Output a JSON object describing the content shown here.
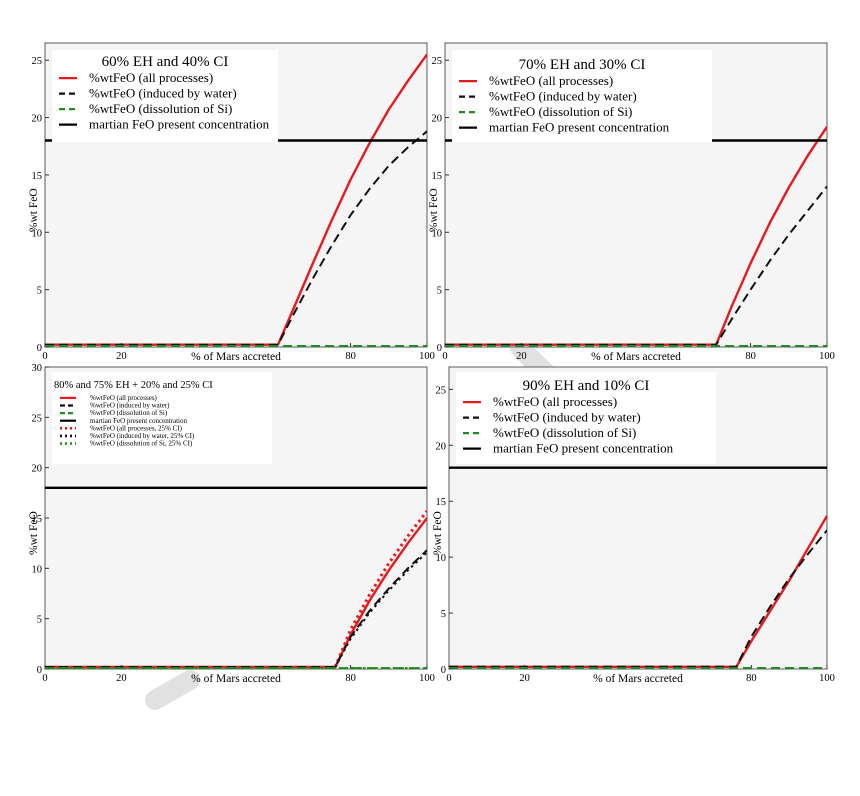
{
  "figure": {
    "panels": [
      {
        "id": "p1",
        "title": "60% EH and 40% CI",
        "ylabel": "%wt FeO",
        "xlabel": "% of Mars accreted",
        "xlim": [
          0,
          100
        ],
        "ylim": [
          0,
          26.5
        ],
        "yticks": [
          0,
          5,
          10,
          15,
          20,
          25
        ],
        "xticks": [
          0,
          20,
          80,
          100
        ],
        "legend_small": false,
        "legend": [
          {
            "label": "%wtFeO (all processes)",
            "color": "#e8191c",
            "style": "solid"
          },
          {
            "label": "%wtFeO (induced by water)",
            "color": "#111111",
            "style": "dash"
          },
          {
            "label": "%wtFeO (dissolution of Si)",
            "color": "#1e8c1e",
            "style": "dash"
          },
          {
            "label": "martian FeO present concentration",
            "color": "#000000",
            "style": "solid"
          }
        ],
        "series": [
          {
            "name": "%wtFeO (all processes)",
            "color": "#e8191c",
            "style": "solid",
            "width": 2.4,
            "x": [
              0,
              61,
              65,
              70,
              75,
              80,
              85,
              90,
              95,
              100
            ],
            "y": [
              0.2,
              0.2,
              3.3,
              7.2,
              11.0,
              14.6,
              17.8,
              20.7,
              23.2,
              25.5
            ]
          },
          {
            "name": "%wtFeO (induced by water)",
            "color": "#111111",
            "style": "dash",
            "width": 2.0,
            "x": [
              0,
              61,
              65,
              70,
              75,
              80,
              85,
              90,
              95,
              100
            ],
            "y": [
              0.2,
              0.2,
              2.8,
              5.9,
              8.8,
              11.5,
              13.8,
              15.8,
              17.4,
              18.8
            ]
          },
          {
            "name": "%wtFeO (dissolution of Si)",
            "color": "#1e8c1e",
            "style": "dash",
            "width": 1.8,
            "x": [
              0,
              100
            ],
            "y": [
              0.1,
              0.1
            ]
          },
          {
            "name": "martian FeO present concentration",
            "color": "#000000",
            "style": "solid",
            "width": 2.4,
            "x": [
              0,
              100
            ],
            "y": [
              18.0,
              18.0
            ]
          }
        ]
      },
      {
        "id": "p2",
        "title": "70% EH and 30% CI",
        "ylabel": "%wt FeO",
        "xlabel": "% of Mars accreted",
        "xlim": [
          0,
          100
        ],
        "ylim": [
          0,
          26.5
        ],
        "yticks": [
          0,
          5,
          10,
          15,
          20,
          25
        ],
        "xticks": [
          0,
          20,
          80,
          100
        ],
        "legend_small": false,
        "legend": [
          {
            "label": "%wtFeO (all processes)",
            "color": "#e8191c",
            "style": "solid"
          },
          {
            "label": "%wtFeO (induced by water)",
            "color": "#111111",
            "style": "dash"
          },
          {
            "label": "%wtFeO (dissolution of Si)",
            "color": "#1e8c1e",
            "style": "dash"
          },
          {
            "label": "martian FeO present concentration",
            "color": "#000000",
            "style": "solid"
          }
        ],
        "series": [
          {
            "name": "%wtFeO (all processes)",
            "color": "#e8191c",
            "style": "solid",
            "width": 2.4,
            "x": [
              0,
              71,
              75,
              80,
              85,
              90,
              95,
              100
            ],
            "y": [
              0.2,
              0.2,
              3.5,
              7.3,
              10.8,
              13.9,
              16.7,
              19.2
            ]
          },
          {
            "name": "%wtFeO (induced by water)",
            "color": "#111111",
            "style": "dash",
            "width": 2.0,
            "x": [
              0,
              71,
              75,
              80,
              85,
              90,
              95,
              100
            ],
            "y": [
              0.2,
              0.2,
              2.4,
              5.0,
              7.5,
              9.8,
              11.9,
              14.0
            ]
          },
          {
            "name": "%wtFeO (dissolution of Si)",
            "color": "#1e8c1e",
            "style": "dash",
            "width": 1.8,
            "x": [
              0,
              100
            ],
            "y": [
              0.1,
              0.1
            ]
          },
          {
            "name": "martian FeO present concentration",
            "color": "#000000",
            "style": "solid",
            "width": 2.4,
            "x": [
              0,
              100
            ],
            "y": [
              18.0,
              18.0
            ]
          }
        ]
      },
      {
        "id": "p3",
        "title": "80% and 75% EH + 20% and 25% CI",
        "ylabel": "%wt FeO",
        "xlabel": "% of Mars accreted",
        "xlim": [
          0,
          100
        ],
        "ylim": [
          0,
          30
        ],
        "yticks": [
          0,
          5,
          10,
          15,
          20,
          25,
          30
        ],
        "xticks": [
          0,
          20,
          80,
          100
        ],
        "legend_small": true,
        "legend": [
          {
            "label": "%wtFeO (all processes)",
            "color": "#e8191c",
            "style": "solid"
          },
          {
            "label": "%wtFeO (induced by water)",
            "color": "#111111",
            "style": "dash"
          },
          {
            "label": "%wtFeO (dissolution of Si)",
            "color": "#1e8c1e",
            "style": "dash"
          },
          {
            "label": "martian FeO present concentration",
            "color": "#000000",
            "style": "solid"
          },
          {
            "label": "%wtFeO (all processes, 25% CI)",
            "color": "#e8191c",
            "style": "dot"
          },
          {
            "label": "%wtFeO (induced by water, 25% CI)",
            "color": "#111111",
            "style": "dot"
          },
          {
            "label": "%wtFeO (dissolution of Si, 25% CI)",
            "color": "#1e8c1e",
            "style": "dot"
          }
        ],
        "series": [
          {
            "name": "%wtFeO (all processes)",
            "color": "#e8191c",
            "style": "solid",
            "width": 2.4,
            "x": [
              0,
              76,
              80,
              85,
              90,
              95,
              100
            ],
            "y": [
              0.2,
              0.2,
              3.4,
              6.8,
              9.8,
              12.5,
              15.0
            ]
          },
          {
            "name": "%wtFeO (induced by water)",
            "color": "#111111",
            "style": "dash",
            "width": 2.0,
            "x": [
              0,
              76,
              80,
              85,
              90,
              95,
              100
            ],
            "y": [
              0.2,
              0.2,
              3.2,
              5.8,
              8.0,
              10.0,
              11.8
            ]
          },
          {
            "name": "%wtFeO (dissolution of Si)",
            "color": "#1e8c1e",
            "style": "dash",
            "width": 1.8,
            "x": [
              0,
              100
            ],
            "y": [
              0.1,
              0.1
            ]
          },
          {
            "name": "martian FeO present concentration",
            "color": "#000000",
            "style": "solid",
            "width": 2.4,
            "x": [
              0,
              100
            ],
            "y": [
              18.0,
              18.0
            ]
          },
          {
            "name": "%wtFeO (all processes, 25% CI)",
            "color": "#e8191c",
            "style": "dot",
            "width": 3.0,
            "x": [
              76,
              80,
              85,
              90,
              95,
              100
            ],
            "y": [
              0.2,
              3.9,
              7.4,
              10.5,
              13.2,
              15.7
            ]
          },
          {
            "name": "%wtFeO (induced by water, 25% CI)",
            "color": "#111111",
            "style": "dot",
            "width": 2.0,
            "x": [
              76,
              80,
              85,
              90,
              95,
              100
            ],
            "y": [
              0.2,
              3.0,
              5.6,
              7.8,
              9.8,
              11.6
            ]
          },
          {
            "name": "%wtFeO (dissolution of Si, 25% CI)",
            "color": "#1e8c1e",
            "style": "dot",
            "width": 2.0,
            "x": [
              0,
              100
            ],
            "y": [
              0.1,
              0.1
            ]
          }
        ]
      },
      {
        "id": "p4",
        "title": "90% EH and 10% CI",
        "ylabel": "%wt FeO",
        "xlabel": "% of Mars accreted",
        "xlim": [
          0,
          100
        ],
        "ylim": [
          0,
          27
        ],
        "yticks": [
          0,
          5,
          10,
          15,
          20,
          25
        ],
        "xticks": [
          0,
          20,
          80,
          100
        ],
        "legend_small": false,
        "legend": [
          {
            "label": "%wtFeO (all processes)",
            "color": "#e8191c",
            "style": "solid"
          },
          {
            "label": "%wtFeO (induced by water)",
            "color": "#111111",
            "style": "dash"
          },
          {
            "label": "%wtFeO (dissolution of Si)",
            "color": "#1e8c1e",
            "style": "dash"
          },
          {
            "label": "martian FeO present concentration",
            "color": "#000000",
            "style": "solid"
          }
        ],
        "series": [
          {
            "name": "%wtFeO (all processes)",
            "color": "#e8191c",
            "style": "solid",
            "width": 2.4,
            "x": [
              0,
              76,
              80,
              85,
              90,
              95,
              100
            ],
            "y": [
              0.2,
              0.2,
              2.5,
              5.2,
              7.9,
              10.8,
              13.7
            ]
          },
          {
            "name": "%wtFeO (induced by water)",
            "color": "#111111",
            "style": "dash",
            "width": 2.0,
            "x": [
              0,
              76,
              80,
              85,
              90,
              95,
              100
            ],
            "y": [
              0.2,
              0.2,
              2.9,
              5.6,
              8.1,
              10.3,
              12.4
            ]
          },
          {
            "name": "%wtFeO (dissolution of Si)",
            "color": "#1e8c1e",
            "style": "dash",
            "width": 1.8,
            "x": [
              0,
              100
            ],
            "y": [
              0.1,
              0.1
            ]
          },
          {
            "name": "martian FeO present concentration",
            "color": "#000000",
            "style": "solid",
            "width": 2.4,
            "x": [
              0,
              100
            ],
            "y": [
              18.0,
              18.0
            ]
          }
        ]
      }
    ]
  },
  "chart_data": [
    {
      "type": "line",
      "title": "60% EH and 40% CI",
      "xlabel": "% of Mars accreted",
      "ylabel": "%wt FeO",
      "xlim": [
        0,
        100
      ],
      "ylim": [
        0,
        26.5
      ],
      "grid": false,
      "legend": "top-left",
      "series": [
        {
          "name": "%wtFeO (all processes)",
          "x": [
            0,
            61,
            65,
            70,
            75,
            80,
            85,
            90,
            95,
            100
          ],
          "y": [
            0.2,
            0.2,
            3.3,
            7.2,
            11.0,
            14.6,
            17.8,
            20.7,
            23.2,
            25.5
          ]
        },
        {
          "name": "%wtFeO (induced by water)",
          "x": [
            0,
            61,
            65,
            70,
            75,
            80,
            85,
            90,
            95,
            100
          ],
          "y": [
            0.2,
            0.2,
            2.8,
            5.9,
            8.8,
            11.5,
            13.8,
            15.8,
            17.4,
            18.8
          ]
        },
        {
          "name": "%wtFeO (dissolution of Si)",
          "x": [
            0,
            100
          ],
          "y": [
            0.1,
            0.1
          ]
        },
        {
          "name": "martian FeO present concentration",
          "x": [
            0,
            100
          ],
          "y": [
            18.0,
            18.0
          ]
        }
      ]
    },
    {
      "type": "line",
      "title": "70% EH and 30% CI",
      "xlabel": "% of Mars accreted",
      "ylabel": "%wt FeO",
      "xlim": [
        0,
        100
      ],
      "ylim": [
        0,
        26.5
      ],
      "grid": false,
      "legend": "top-left",
      "series": [
        {
          "name": "%wtFeO (all processes)",
          "x": [
            0,
            71,
            75,
            80,
            85,
            90,
            95,
            100
          ],
          "y": [
            0.2,
            0.2,
            3.5,
            7.3,
            10.8,
            13.9,
            16.7,
            19.2
          ]
        },
        {
          "name": "%wtFeO (induced by water)",
          "x": [
            0,
            71,
            75,
            80,
            85,
            90,
            95,
            100
          ],
          "y": [
            0.2,
            0.2,
            2.4,
            5.0,
            7.5,
            9.8,
            11.9,
            14.0
          ]
        },
        {
          "name": "%wtFeO (dissolution of Si)",
          "x": [
            0,
            100
          ],
          "y": [
            0.1,
            0.1
          ]
        },
        {
          "name": "martian FeO present concentration",
          "x": [
            0,
            100
          ],
          "y": [
            18.0,
            18.0
          ]
        }
      ]
    },
    {
      "type": "line",
      "title": "80% and 75% EH + 20% and 25% CI",
      "xlabel": "% of Mars accreted",
      "ylabel": "%wt FeO",
      "xlim": [
        0,
        100
      ],
      "ylim": [
        0,
        30
      ],
      "grid": false,
      "legend": "top-left",
      "series": [
        {
          "name": "%wtFeO (all processes)",
          "x": [
            0,
            76,
            80,
            85,
            90,
            95,
            100
          ],
          "y": [
            0.2,
            0.2,
            3.4,
            6.8,
            9.8,
            12.5,
            15.0
          ]
        },
        {
          "name": "%wtFeO (induced by water)",
          "x": [
            0,
            76,
            80,
            85,
            90,
            95,
            100
          ],
          "y": [
            0.2,
            0.2,
            3.2,
            5.8,
            8.0,
            10.0,
            11.8
          ]
        },
        {
          "name": "%wtFeO (dissolution of Si)",
          "x": [
            0,
            100
          ],
          "y": [
            0.1,
            0.1
          ]
        },
        {
          "name": "martian FeO present concentration",
          "x": [
            0,
            100
          ],
          "y": [
            18.0,
            18.0
          ]
        },
        {
          "name": "%wtFeO (all processes, 25% CI)",
          "x": [
            76,
            80,
            85,
            90,
            95,
            100
          ],
          "y": [
            0.2,
            3.9,
            7.4,
            10.5,
            13.2,
            15.7
          ]
        },
        {
          "name": "%wtFeO (induced by water, 25% CI)",
          "x": [
            76,
            80,
            85,
            90,
            95,
            100
          ],
          "y": [
            0.2,
            3.0,
            5.6,
            7.8,
            9.8,
            11.6
          ]
        },
        {
          "name": "%wtFeO (dissolution of Si, 25% CI)",
          "x": [
            0,
            100
          ],
          "y": [
            0.1,
            0.1
          ]
        }
      ]
    },
    {
      "type": "line",
      "title": "90% EH and 10% CI",
      "xlabel": "% of Mars accreted",
      "ylabel": "%wt FeO",
      "xlim": [
        0,
        100
      ],
      "ylim": [
        0,
        27
      ],
      "grid": false,
      "legend": "top-left",
      "series": [
        {
          "name": "%wtFeO (all processes)",
          "x": [
            0,
            76,
            80,
            85,
            90,
            95,
            100
          ],
          "y": [
            0.2,
            0.2,
            2.5,
            5.2,
            7.9,
            10.8,
            13.7
          ]
        },
        {
          "name": "%wtFeO (induced by water)",
          "x": [
            0,
            76,
            80,
            85,
            90,
            95,
            100
          ],
          "y": [
            0.2,
            0.2,
            2.9,
            5.6,
            8.1,
            10.3,
            12.4
          ]
        },
        {
          "name": "%wtFeO (dissolution of Si)",
          "x": [
            0,
            100
          ],
          "y": [
            0.1,
            0.1
          ]
        },
        {
          "name": "martian FeO present concentration",
          "x": [
            0,
            100
          ],
          "y": [
            18.0,
            18.0
          ]
        }
      ]
    }
  ]
}
